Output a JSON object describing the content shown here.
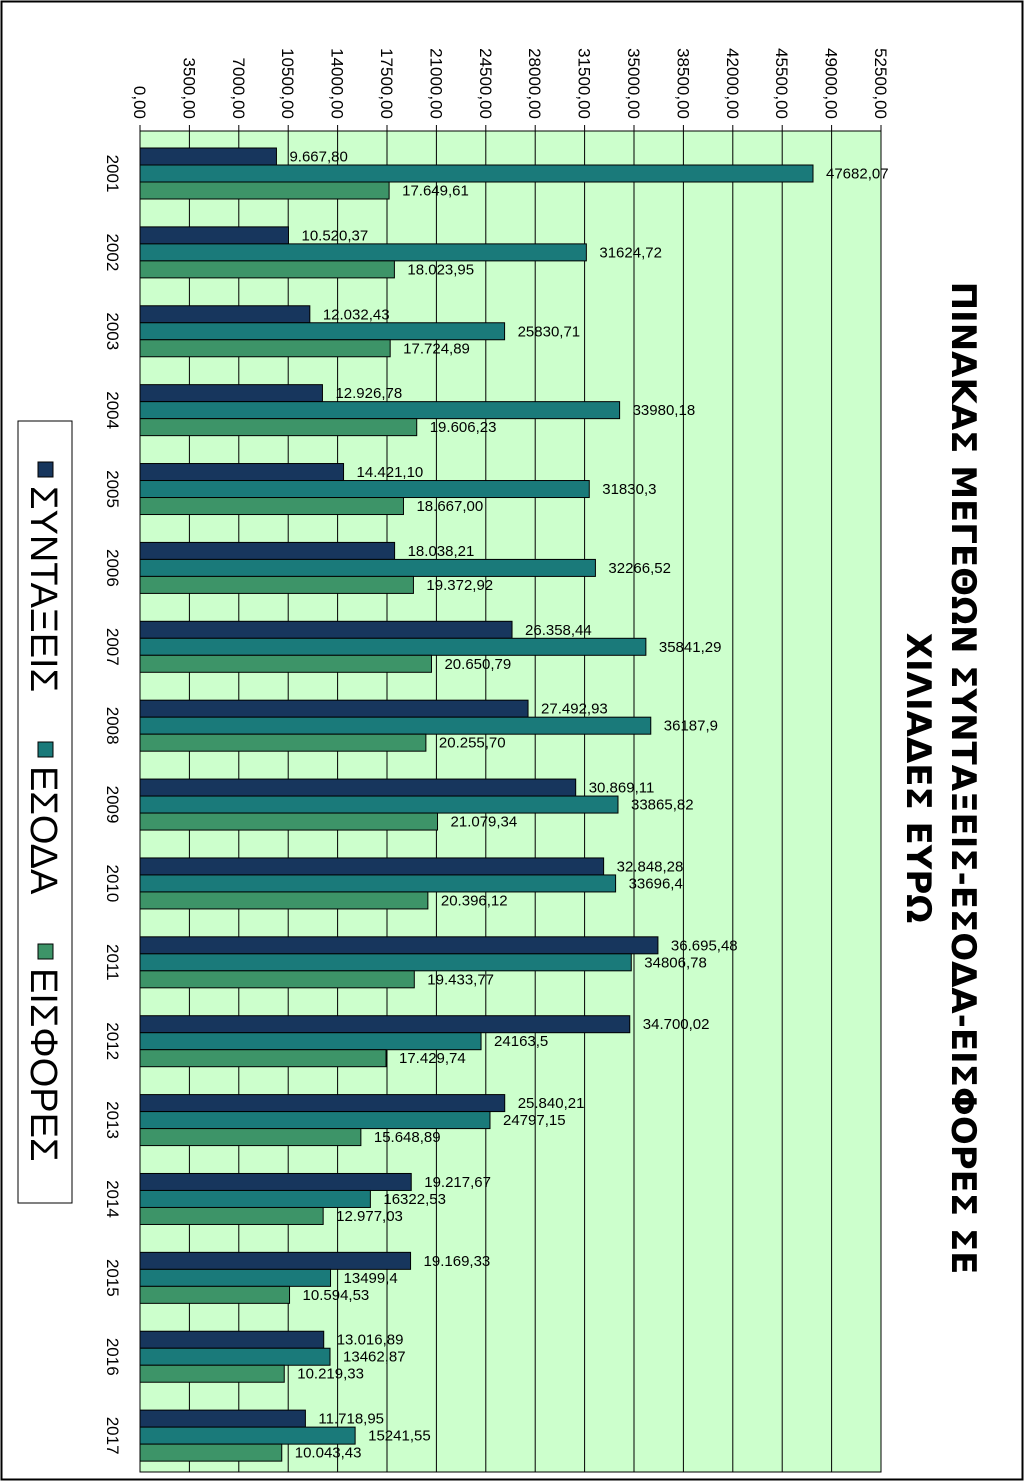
{
  "chart_data": {
    "type": "bar",
    "orientation": "horizontal",
    "title_lines": [
      "ΠΙΝΑΚΑΣ ΜΕΓΕΘΩΝ ΣΥΝΤΑΞΕΙΣ-ΕΣΟΔΑ-ΕΙΣΦΟΡΕΣ  ΣΕ",
      "ΧΙΛΙΑΔΕΣ ΕΥΡΩ"
    ],
    "categories": [
      "2001",
      "2002",
      "2003",
      "2004",
      "2005",
      "2006",
      "2007",
      "2008",
      "2009",
      "2010",
      "2011",
      "2012",
      "2013",
      "2014",
      "2015",
      "2016",
      "2017"
    ],
    "series": [
      {
        "name": "ΣΥΝΤΑΞΕΙΣ",
        "color": "#17365d",
        "values": [
          9667.8,
          10520.37,
          12032.43,
          12926.78,
          14421.1,
          18038.21,
          26358.44,
          27492.93,
          30869.11,
          32848.28,
          36695.48,
          34700.02,
          25840.21,
          19217.67,
          19169.33,
          13016.89,
          11718.95
        ],
        "labels": [
          "9.667,80",
          "10.520,37",
          "12.032,43",
          "12.926,78",
          "14.421,10",
          "18.038,21",
          "26.358,44",
          "27.492,93",
          "30.869,11",
          "32.848,28",
          "36.695,48",
          "34.700,02",
          "25.840,21",
          "19.217,67",
          "19.169,33",
          "13.016,89",
          "11.718,95"
        ]
      },
      {
        "name": "ΕΣΟΔΑ",
        "color": "#1a7a7a",
        "values": [
          47682.07,
          31624.72,
          25830.71,
          33980.18,
          31830.3,
          32266.52,
          35841.29,
          36187.9,
          33865.82,
          33696.4,
          34806.78,
          24163.5,
          24797.15,
          16322.53,
          13499.4,
          13462.87,
          15241.55
        ],
        "labels": [
          "47682,07",
          "31624,72",
          "25830,71",
          "33980,18",
          "31830,3",
          "32266,52",
          "35841,29",
          "36187,9",
          "33865,82",
          "33696,4",
          "34806,78",
          "24163,5",
          "24797,15",
          "16322,53",
          "13499,4",
          "13462,87",
          "15241,55"
        ]
      },
      {
        "name": "ΕΙΣΦΟΡΕΣ",
        "color": "#3d9468",
        "values": [
          17649.61,
          18023.95,
          17724.89,
          19606.23,
          18667.0,
          19372.92,
          20650.79,
          20255.7,
          21079.34,
          20396.12,
          19433.77,
          17429.74,
          15648.89,
          12977.03,
          10594.53,
          10219.33,
          10043.43
        ],
        "labels": [
          "17.649,61",
          "18.023,95",
          "17.724,89",
          "19.606,23",
          "18.667,00",
          "19.372,92",
          "20.650,79",
          "20.255,70",
          "21.079,34",
          "20.396,12",
          "19.433,77",
          "17.429,74",
          "15.648,89",
          "12.977,03",
          "10.594,53",
          "10.219,33",
          "10.043,43"
        ]
      }
    ],
    "value_axis": {
      "min": 0,
      "max": 52500,
      "step": 3500,
      "tick_labels": [
        "0,00",
        "3500,00",
        "7000,00",
        "10500,00",
        "14000,00",
        "17500,00",
        "21000,00",
        "24500,00",
        "28000,00",
        "31500,00",
        "35000,00",
        "38500,00",
        "42000,00",
        "45500,00",
        "49000,00",
        "52500,00"
      ]
    },
    "plot_background": "#ccffcc",
    "grid": true,
    "legend_position": "left",
    "rotation": "rotated 90 degrees clockwise"
  }
}
